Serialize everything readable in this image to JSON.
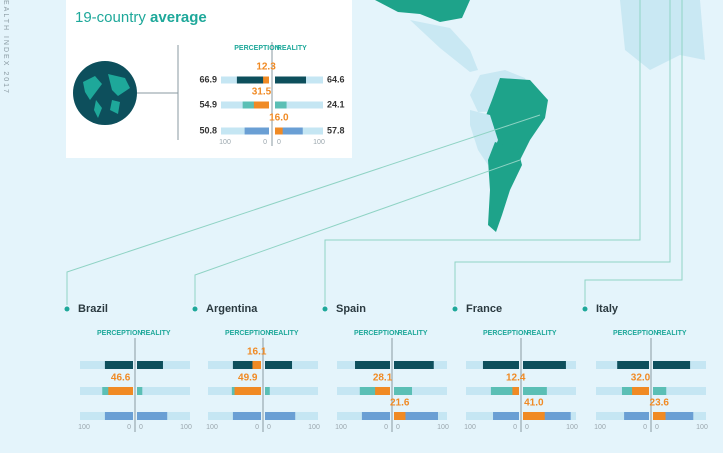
{
  "side_text": "EALTH INDEX 2017",
  "column_headers": [
    "PERCEPTION",
    "REALITY"
  ],
  "scale_labels": [
    "100",
    "0",
    "0",
    "100"
  ],
  "row_colors": [
    "#0d4f5c",
    "#5bbfb5",
    "#6a9fd4"
  ],
  "gap_color": "#f08a24",
  "average": {
    "title_prefix": "19-country",
    "title_bold": "average",
    "rows": [
      {
        "perception": 66.9,
        "reality": 64.6,
        "gap": 12.3,
        "gap_side": "perception"
      },
      {
        "perception": 54.9,
        "reality": 24.1,
        "gap": 31.5,
        "gap_side": "perception"
      },
      {
        "perception": 50.8,
        "reality": 57.8,
        "gap": 16.0,
        "gap_side": "reality",
        "gap_label": "16.0"
      }
    ]
  },
  "countries": [
    {
      "name": "Brazil",
      "rows": [
        {
          "perception": 53,
          "reality": 49,
          "gap": null,
          "gap_side": null
        },
        {
          "perception": 58,
          "reality": 10,
          "gap": 46.6,
          "gap_side": "perception"
        },
        {
          "perception": 53,
          "reality": 57,
          "gap": null,
          "gap_side": null
        }
      ]
    },
    {
      "name": "Argentina",
      "rows": [
        {
          "perception": 53,
          "reality": 51,
          "gap": 16.1,
          "gap_side": "perception"
        },
        {
          "perception": 55,
          "reality": 9,
          "gap": 49.9,
          "gap_side": "perception"
        },
        {
          "perception": 53,
          "reality": 57,
          "gap": null,
          "gap_side": null
        }
      ]
    },
    {
      "name": "Spain",
      "rows": [
        {
          "perception": 66,
          "reality": 75,
          "gap": null,
          "gap_side": null
        },
        {
          "perception": 57,
          "reality": 34,
          "gap": 28.1,
          "gap_side": "perception"
        },
        {
          "perception": 53,
          "reality": 83,
          "gap": 21.6,
          "gap_side": "reality"
        }
      ]
    },
    {
      "name": "France",
      "rows": [
        {
          "perception": 68,
          "reality": 81,
          "gap": null,
          "gap_side": null
        },
        {
          "perception": 53,
          "reality": 45,
          "gap": 12.4,
          "gap_side": "perception"
        },
        {
          "perception": 49,
          "reality": 90,
          "gap": 41.0,
          "gap_side": "reality",
          "gap_label": "41.0"
        }
      ]
    },
    {
      "name": "Italy",
      "rows": [
        {
          "perception": 60,
          "reality": 70,
          "gap": null,
          "gap_side": null
        },
        {
          "perception": 51,
          "reality": 25,
          "gap": 32.0,
          "gap_side": "perception",
          "gap_label": "32.0"
        },
        {
          "perception": 47,
          "reality": 76,
          "gap": 23.6,
          "gap_side": "reality"
        }
      ]
    }
  ]
}
